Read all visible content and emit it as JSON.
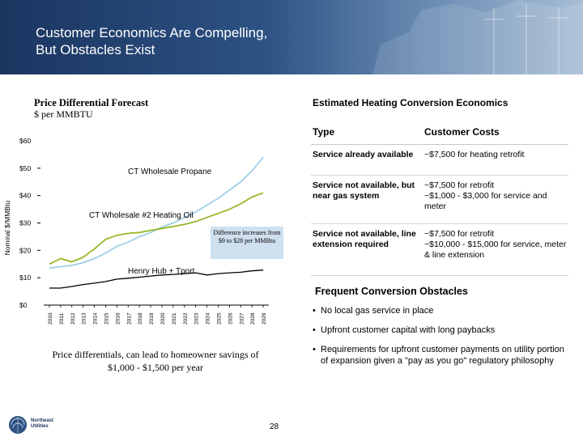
{
  "header": {
    "title_lines": [
      "Customer Economics Are Compelling,",
      "But Obstacles Exist"
    ],
    "colors": {
      "dark": "#1b3560",
      "light": "#a7bdd4"
    }
  },
  "chart": {
    "title": "Price Differential Forecast",
    "subtitle": "$ per MMBTU",
    "callout": "Difference increases from $9 to $28 per MMBtu",
    "savings_note": "Price differentials, can lead to homeowner savings of $1,000 - $1,500 per year"
  },
  "chart_data": {
    "type": "line",
    "ylabel": "Nominal $/MMBtu",
    "xlabel": "",
    "ylim": [
      0,
      60
    ],
    "y_ticks": [
      "$0",
      "$10",
      "$20",
      "$30",
      "$40",
      "$50",
      "$60"
    ],
    "x": [
      "2010",
      "2011",
      "2012",
      "2013",
      "2014",
      "2015",
      "2016",
      "2017",
      "2018",
      "2019",
      "2020",
      "2021",
      "2022",
      "2023",
      "2024",
      "2025",
      "2026",
      "2027",
      "2028",
      "2029"
    ],
    "grid": false,
    "series": [
      {
        "name": "CT Wholesale Propane",
        "color": "#9fd0e6",
        "values": [
          13.5,
          14.0,
          14.5,
          15.5,
          17.0,
          19.0,
          21.5,
          23.0,
          25.0,
          26.5,
          28.5,
          30.0,
          32.0,
          34.0,
          36.5,
          39.0,
          42.0,
          45.0,
          49.0,
          54.0
        ]
      },
      {
        "name": "CT Wholesale #2 Heating Oil",
        "color": "#95b826",
        "values": [
          15.0,
          17.0,
          15.8,
          17.5,
          20.5,
          24.0,
          25.5,
          26.2,
          26.5,
          27.3,
          28.0,
          28.7,
          29.5,
          30.5,
          32.0,
          33.5,
          35.0,
          37.0,
          39.5,
          41.0
        ]
      },
      {
        "name": "Henry Hub + Tport",
        "color": "#000000",
        "values": [
          6.2,
          6.2,
          6.8,
          7.5,
          8.0,
          8.6,
          9.5,
          9.8,
          10.2,
          10.6,
          11.0,
          11.2,
          11.5,
          11.8,
          11.0,
          11.5,
          11.8,
          12.0,
          12.5,
          12.8
        ]
      }
    ]
  },
  "economics": {
    "title": "Estimated Heating Conversion Economics",
    "columns": [
      "Type",
      "Customer Costs"
    ],
    "rows": [
      {
        "type": "Service already available",
        "costs": [
          "~$7,500 for heating retrofit"
        ]
      },
      {
        "type": "Service not available, but near gas system",
        "costs": [
          "~$7,500 for retrofit",
          "~$1,000 - $3,000 for service and meter"
        ]
      },
      {
        "type": "Service not available, line extension required",
        "costs": [
          "~$7,500 for retrofit",
          "~$10,000 - $15,000 for service, meter & line extension"
        ]
      }
    ]
  },
  "obstacles": {
    "title": "Frequent Conversion Obstacles",
    "bullet": "•",
    "items": [
      "No local gas service in place",
      "Upfront customer capital with long paybacks",
      "Requirements for upfront customer payments on utility portion of expansion given a \"pay as you go\" regulatory philosophy"
    ]
  },
  "footer": {
    "logo_lines": [
      "Northeast",
      "Utilities"
    ],
    "page_number": "28"
  }
}
